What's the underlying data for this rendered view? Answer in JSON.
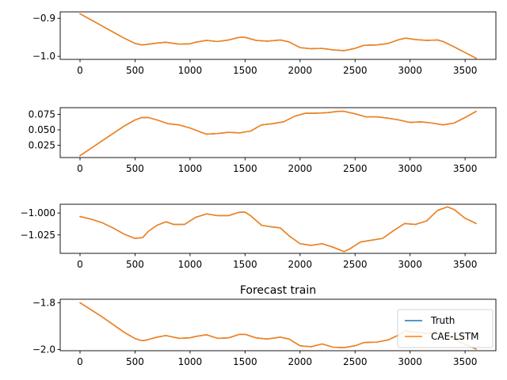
{
  "chart_data": [
    {
      "type": "line",
      "title": "",
      "xlabel": "",
      "ylabel": "",
      "xlim": [
        -180,
        3780
      ],
      "ylim": [
        -1.008,
        -0.883
      ],
      "xticks": [
        0,
        500,
        1000,
        1500,
        2000,
        2500,
        3000,
        3500
      ],
      "yticks": [
        -0.9,
        -1.0
      ],
      "ytick_labels": [
        "−0.9",
        "−1.0"
      ],
      "legend": null,
      "series": [
        {
          "color": "#1f77b4",
          "x": [
            0,
            100,
            200,
            300,
            400,
            500,
            560,
            600,
            700,
            780,
            900,
            1000,
            1050,
            1150,
            1250,
            1350,
            1450,
            1500,
            1600,
            1700,
            1820,
            1900,
            2000,
            2100,
            2200,
            2300,
            2400,
            2500,
            2580,
            2700,
            2800,
            2900,
            2960,
            3050,
            3150,
            3250,
            3300,
            3400,
            3500,
            3600
          ],
          "y": [
            -0.888,
            -0.904,
            -0.92,
            -0.936,
            -0.952,
            -0.966,
            -0.97,
            -0.969,
            -0.965,
            -0.963,
            -0.968,
            -0.967,
            -0.963,
            -0.958,
            -0.961,
            -0.957,
            -0.95,
            -0.95,
            -0.958,
            -0.96,
            -0.957,
            -0.962,
            -0.977,
            -0.98,
            -0.979,
            -0.983,
            -0.985,
            -0.979,
            -0.971,
            -0.97,
            -0.966,
            -0.956,
            -0.952,
            -0.956,
            -0.958,
            -0.957,
            -0.961,
            -0.975,
            -0.99,
            -1.005
          ]
        },
        {
          "color": "#ff7f0e",
          "x": [
            0,
            100,
            200,
            300,
            400,
            500,
            560,
            600,
            700,
            780,
            900,
            1000,
            1050,
            1150,
            1250,
            1350,
            1450,
            1500,
            1600,
            1700,
            1820,
            1900,
            2000,
            2100,
            2200,
            2300,
            2400,
            2500,
            2580,
            2700,
            2800,
            2900,
            2960,
            3050,
            3150,
            3250,
            3300,
            3400,
            3500,
            3600
          ],
          "y": [
            -0.888,
            -0.904,
            -0.92,
            -0.936,
            -0.952,
            -0.966,
            -0.97,
            -0.969,
            -0.965,
            -0.963,
            -0.968,
            -0.967,
            -0.963,
            -0.958,
            -0.961,
            -0.957,
            -0.95,
            -0.95,
            -0.958,
            -0.96,
            -0.957,
            -0.962,
            -0.977,
            -0.98,
            -0.979,
            -0.983,
            -0.985,
            -0.979,
            -0.971,
            -0.97,
            -0.966,
            -0.956,
            -0.952,
            -0.956,
            -0.958,
            -0.957,
            -0.961,
            -0.975,
            -0.99,
            -1.005
          ]
        }
      ]
    },
    {
      "type": "line",
      "title": "",
      "xlabel": "",
      "ylabel": "",
      "xlim": [
        -180,
        3780
      ],
      "ylim": [
        0.005,
        0.086
      ],
      "xticks": [
        0,
        500,
        1000,
        1500,
        2000,
        2500,
        3000,
        3500
      ],
      "yticks": [
        0.025,
        0.05,
        0.075
      ],
      "ytick_labels": [
        "0.025",
        "0.050",
        "0.075"
      ],
      "legend": null,
      "series": [
        {
          "color": "#1f77b4",
          "x": [
            0,
            100,
            200,
            300,
            400,
            500,
            560,
            620,
            700,
            800,
            900,
            1000,
            1100,
            1150,
            1250,
            1350,
            1450,
            1550,
            1650,
            1750,
            1850,
            1950,
            2050,
            2150,
            2250,
            2350,
            2400,
            2500,
            2600,
            2700,
            2800,
            2900,
            3000,
            3100,
            3200,
            3300,
            3400,
            3500,
            3600
          ],
          "y": [
            0.008,
            0.02,
            0.032,
            0.044,
            0.056,
            0.066,
            0.07,
            0.07,
            0.066,
            0.06,
            0.058,
            0.053,
            0.046,
            0.043,
            0.044,
            0.046,
            0.045,
            0.048,
            0.058,
            0.06,
            0.063,
            0.072,
            0.077,
            0.077,
            0.078,
            0.08,
            0.08,
            0.076,
            0.071,
            0.071,
            0.069,
            0.066,
            0.062,
            0.063,
            0.061,
            0.058,
            0.061,
            0.07,
            0.08
          ]
        },
        {
          "color": "#ff7f0e",
          "x": [
            0,
            100,
            200,
            300,
            400,
            500,
            560,
            620,
            700,
            800,
            900,
            1000,
            1100,
            1150,
            1250,
            1350,
            1450,
            1550,
            1650,
            1750,
            1850,
            1950,
            2050,
            2150,
            2250,
            2350,
            2400,
            2500,
            2600,
            2700,
            2800,
            2900,
            3000,
            3100,
            3200,
            3300,
            3400,
            3500,
            3600
          ],
          "y": [
            0.008,
            0.02,
            0.032,
            0.044,
            0.056,
            0.066,
            0.07,
            0.07,
            0.066,
            0.06,
            0.058,
            0.053,
            0.046,
            0.043,
            0.044,
            0.046,
            0.045,
            0.048,
            0.058,
            0.06,
            0.063,
            0.072,
            0.077,
            0.077,
            0.078,
            0.08,
            0.08,
            0.076,
            0.071,
            0.071,
            0.069,
            0.066,
            0.062,
            0.063,
            0.061,
            0.058,
            0.061,
            0.07,
            0.08
          ]
        }
      ]
    },
    {
      "type": "line",
      "title": "",
      "xlabel": "",
      "ylabel": "",
      "xlim": [
        -180,
        3780
      ],
      "ylim": [
        -1.046,
        -0.99
      ],
      "xticks": [
        0,
        500,
        1000,
        1500,
        2000,
        2500,
        3000,
        3500
      ],
      "yticks": [
        -1.0,
        -1.025
      ],
      "ytick_labels": [
        "−1.000",
        "−1.025"
      ],
      "legend": null,
      "series": [
        {
          "color": "#1f77b4",
          "x": [
            0,
            100,
            200,
            300,
            400,
            500,
            570,
            620,
            700,
            780,
            850,
            950,
            1050,
            1150,
            1250,
            1350,
            1450,
            1500,
            1550,
            1650,
            1750,
            1820,
            1900,
            2000,
            2100,
            2200,
            2300,
            2400,
            2450,
            2550,
            2650,
            2750,
            2850,
            2950,
            3050,
            3150,
            3250,
            3340,
            3400,
            3500,
            3600
          ],
          "y": [
            -1.004,
            -1.007,
            -1.011,
            -1.017,
            -1.024,
            -1.029,
            -1.028,
            -1.021,
            -1.014,
            -1.01,
            -1.013,
            -1.013,
            -1.005,
            -1.001,
            -1.003,
            -1.003,
            -0.999,
            -0.999,
            -1.003,
            -1.014,
            -1.016,
            -1.017,
            -1.026,
            -1.035,
            -1.037,
            -1.035,
            -1.039,
            -1.044,
            -1.041,
            -1.033,
            -1.031,
            -1.029,
            -1.02,
            -1.012,
            -1.013,
            -1.009,
            -0.997,
            -0.993,
            -0.996,
            -1.006,
            -1.012
          ]
        },
        {
          "color": "#ff7f0e",
          "x": [
            0,
            100,
            200,
            300,
            400,
            500,
            570,
            620,
            700,
            780,
            850,
            950,
            1050,
            1150,
            1250,
            1350,
            1450,
            1500,
            1550,
            1650,
            1750,
            1820,
            1900,
            2000,
            2100,
            2200,
            2300,
            2400,
            2450,
            2550,
            2650,
            2750,
            2850,
            2950,
            3050,
            3150,
            3250,
            3340,
            3400,
            3500,
            3600
          ],
          "y": [
            -1.004,
            -1.007,
            -1.011,
            -1.017,
            -1.024,
            -1.029,
            -1.028,
            -1.021,
            -1.014,
            -1.01,
            -1.013,
            -1.013,
            -1.005,
            -1.001,
            -1.003,
            -1.003,
            -0.999,
            -0.999,
            -1.003,
            -1.014,
            -1.016,
            -1.017,
            -1.026,
            -1.035,
            -1.037,
            -1.035,
            -1.039,
            -1.044,
            -1.041,
            -1.033,
            -1.031,
            -1.029,
            -1.02,
            -1.012,
            -1.013,
            -1.009,
            -0.997,
            -0.993,
            -0.996,
            -1.006,
            -1.012
          ]
        }
      ]
    },
    {
      "type": "line",
      "title": "Forecast train",
      "xlabel": "",
      "ylabel": "",
      "xlim": [
        -180,
        3780
      ],
      "ylim": [
        -2.005,
        -1.785
      ],
      "xticks": [
        0,
        500,
        1000,
        1500,
        2000,
        2500,
        3000,
        3500
      ],
      "yticks": [
        -1.8,
        -2.0
      ],
      "ytick_labels": [
        "−1.8",
        "−2.0"
      ],
      "legend": {
        "position": "lower right",
        "entries": [
          "Truth",
          "CAE-LSTM"
        ]
      },
      "series": [
        {
          "name": "Truth",
          "color": "#1f77b4",
          "x": [
            0,
            100,
            200,
            300,
            400,
            500,
            560,
            600,
            700,
            780,
            900,
            1000,
            1050,
            1150,
            1250,
            1350,
            1450,
            1500,
            1600,
            1700,
            1820,
            1900,
            2000,
            2100,
            2200,
            2300,
            2400,
            2500,
            2580,
            2700,
            2800,
            2900,
            2960,
            3050,
            3150,
            3250,
            3300,
            3400,
            3500,
            3600
          ],
          "y": [
            -1.8,
            -1.83,
            -1.86,
            -1.893,
            -1.926,
            -1.953,
            -1.962,
            -1.96,
            -1.947,
            -1.94,
            -1.952,
            -1.95,
            -1.944,
            -1.937,
            -1.952,
            -1.95,
            -1.935,
            -1.935,
            -1.95,
            -1.955,
            -1.947,
            -1.955,
            -1.984,
            -1.988,
            -1.976,
            -1.99,
            -1.992,
            -1.984,
            -1.97,
            -1.968,
            -1.959,
            -1.937,
            -1.92,
            -1.926,
            -1.932,
            -1.929,
            -1.935,
            -1.957,
            -1.978,
            -1.998
          ]
        },
        {
          "name": "CAE-LSTM",
          "color": "#ff7f0e",
          "x": [
            0,
            100,
            200,
            300,
            400,
            500,
            560,
            600,
            700,
            780,
            900,
            1000,
            1050,
            1150,
            1250,
            1350,
            1450,
            1500,
            1600,
            1700,
            1820,
            1900,
            2000,
            2100,
            2200,
            2300,
            2400,
            2500,
            2580,
            2700,
            2800,
            2900,
            2960,
            3050,
            3150,
            3250,
            3300,
            3400,
            3500,
            3600
          ],
          "y": [
            -1.8,
            -1.83,
            -1.86,
            -1.893,
            -1.926,
            -1.953,
            -1.962,
            -1.96,
            -1.947,
            -1.94,
            -1.952,
            -1.95,
            -1.944,
            -1.937,
            -1.952,
            -1.95,
            -1.935,
            -1.935,
            -1.95,
            -1.955,
            -1.947,
            -1.955,
            -1.984,
            -1.988,
            -1.976,
            -1.99,
            -1.992,
            -1.984,
            -1.97,
            -1.968,
            -1.959,
            -1.937,
            -1.92,
            -1.926,
            -1.932,
            -1.929,
            -1.935,
            -1.957,
            -1.978,
            -1.998
          ]
        }
      ]
    }
  ]
}
